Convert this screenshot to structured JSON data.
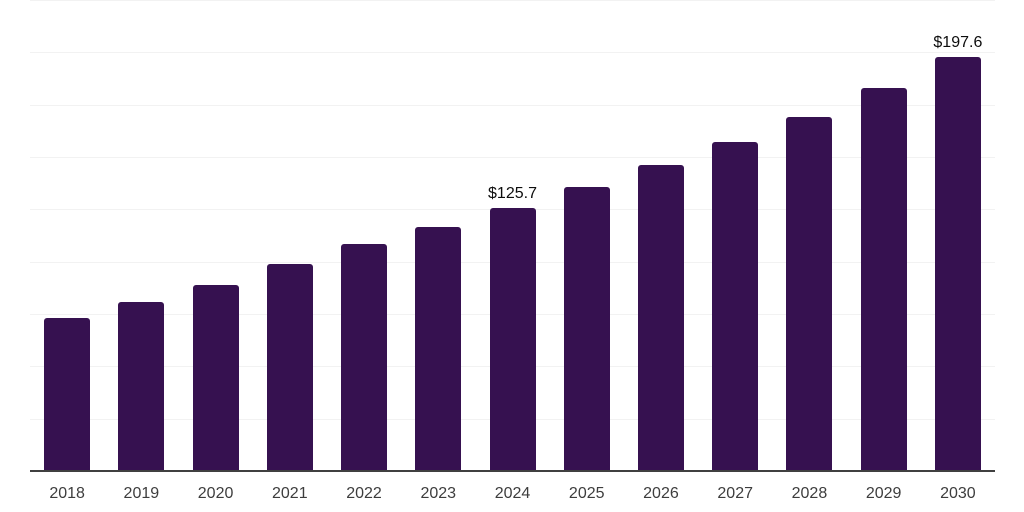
{
  "chart_data": {
    "type": "bar",
    "title": "",
    "xlabel": "",
    "ylabel": "",
    "categories": [
      "2018",
      "2019",
      "2020",
      "2021",
      "2022",
      "2023",
      "2024",
      "2025",
      "2026",
      "2027",
      "2028",
      "2029",
      "2030"
    ],
    "values": [
      73.0,
      80.8,
      88.8,
      98.8,
      108.3,
      116.5,
      125.7,
      135.6,
      146.0,
      157.0,
      169.0,
      182.8,
      197.6
    ],
    "data_labels": [
      "",
      "",
      "",
      "",
      "",
      "",
      "$125.7",
      "",
      "",
      "",
      "",
      "",
      "$197.6"
    ],
    "ylim": [
      0,
      225
    ],
    "gridline_step": 25,
    "grid": "horizontal-only",
    "legend": "none",
    "y_tick_labels_visible": false,
    "colors": {
      "bar": "#361150",
      "gridline": "#f2f2f2",
      "axis_line": "#404040",
      "tick_label": "#3d3d3d",
      "data_label": "#0d0d0d"
    }
  }
}
